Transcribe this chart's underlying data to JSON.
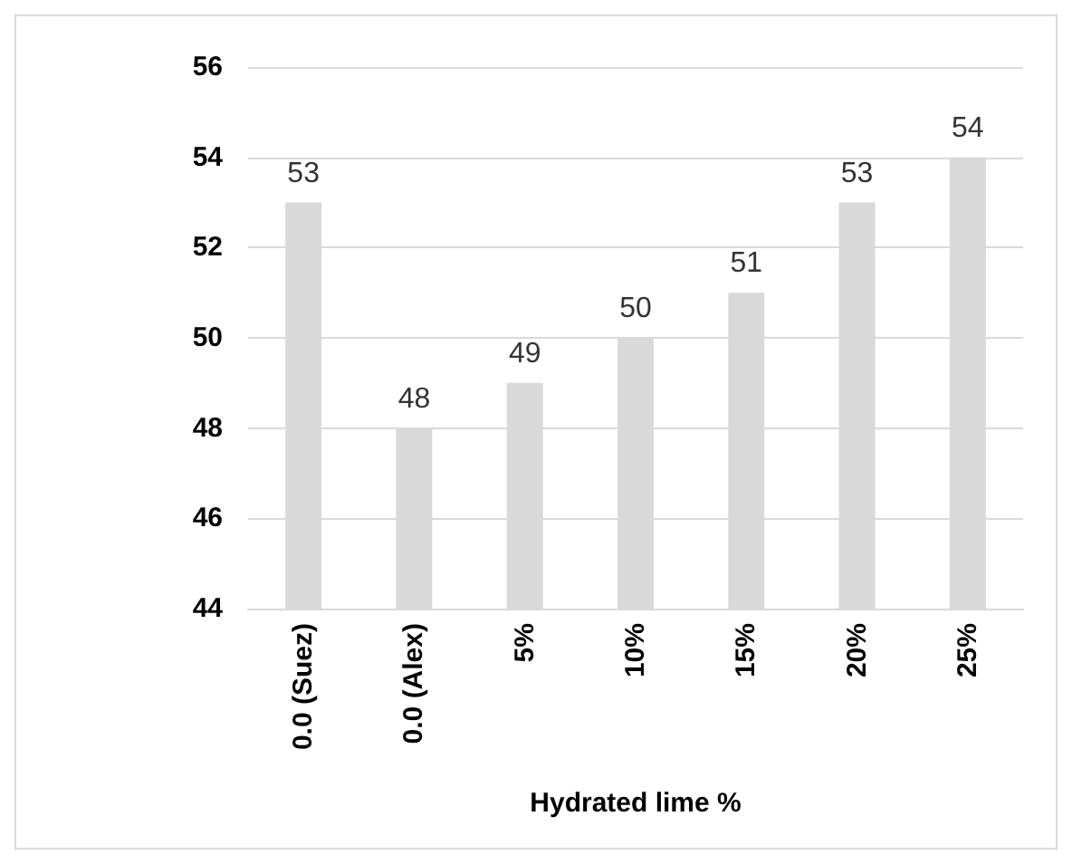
{
  "chart_data": {
    "type": "bar",
    "xlabel": "Hydrated lime %",
    "categories": [
      "0.0 (Suez)",
      "0.0 (Alex)",
      "5%",
      "10%",
      "15%",
      "20%",
      "25%"
    ],
    "values": [
      53,
      48,
      49,
      50,
      51,
      53,
      54
    ],
    "color": "#d9d9d9",
    "ylim": [
      44,
      56
    ],
    "yticks": [
      44,
      46,
      48,
      50,
      52,
      54,
      56
    ],
    "grid": "y",
    "data_labels": true
  }
}
